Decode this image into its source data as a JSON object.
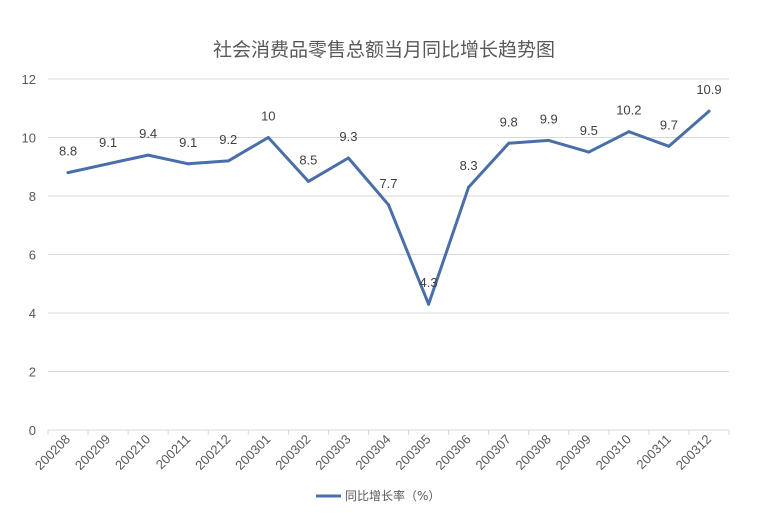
{
  "chart_data": {
    "type": "line",
    "title": "社会消费品零售总额当月同比增长趋势图",
    "xlabel": "",
    "ylabel": "",
    "categories": [
      "200208",
      "200209",
      "200210",
      "200211",
      "200212",
      "200301",
      "200302",
      "200303",
      "200304",
      "200305",
      "200306",
      "200307",
      "200308",
      "200309",
      "200310",
      "200311",
      "200312"
    ],
    "series": [
      {
        "name": "同比增长率（%）",
        "values": [
          8.8,
          9.1,
          9.4,
          9.1,
          9.2,
          10,
          8.5,
          9.3,
          7.7,
          4.3,
          8.3,
          9.8,
          9.9,
          9.5,
          10.2,
          9.7,
          10.9
        ],
        "labels": [
          "8.8",
          "9.1",
          "9.4",
          "9.1",
          "9.2",
          "10",
          "8.5",
          "9.3",
          "7.7",
          "4.3",
          "8.3",
          "9.8",
          "9.9",
          "9.5",
          "10.2",
          "9.7",
          "10.9"
        ],
        "color": "#4a6fa8"
      }
    ],
    "ylim": [
      0,
      12
    ],
    "yticks": [
      "0",
      "2",
      "4",
      "6",
      "8",
      "10",
      "12"
    ],
    "grid": true,
    "legend_position": "bottom",
    "colors": {
      "line": "#4a6fa8",
      "grid": "#d9d9d9",
      "text": "#595959"
    }
  }
}
